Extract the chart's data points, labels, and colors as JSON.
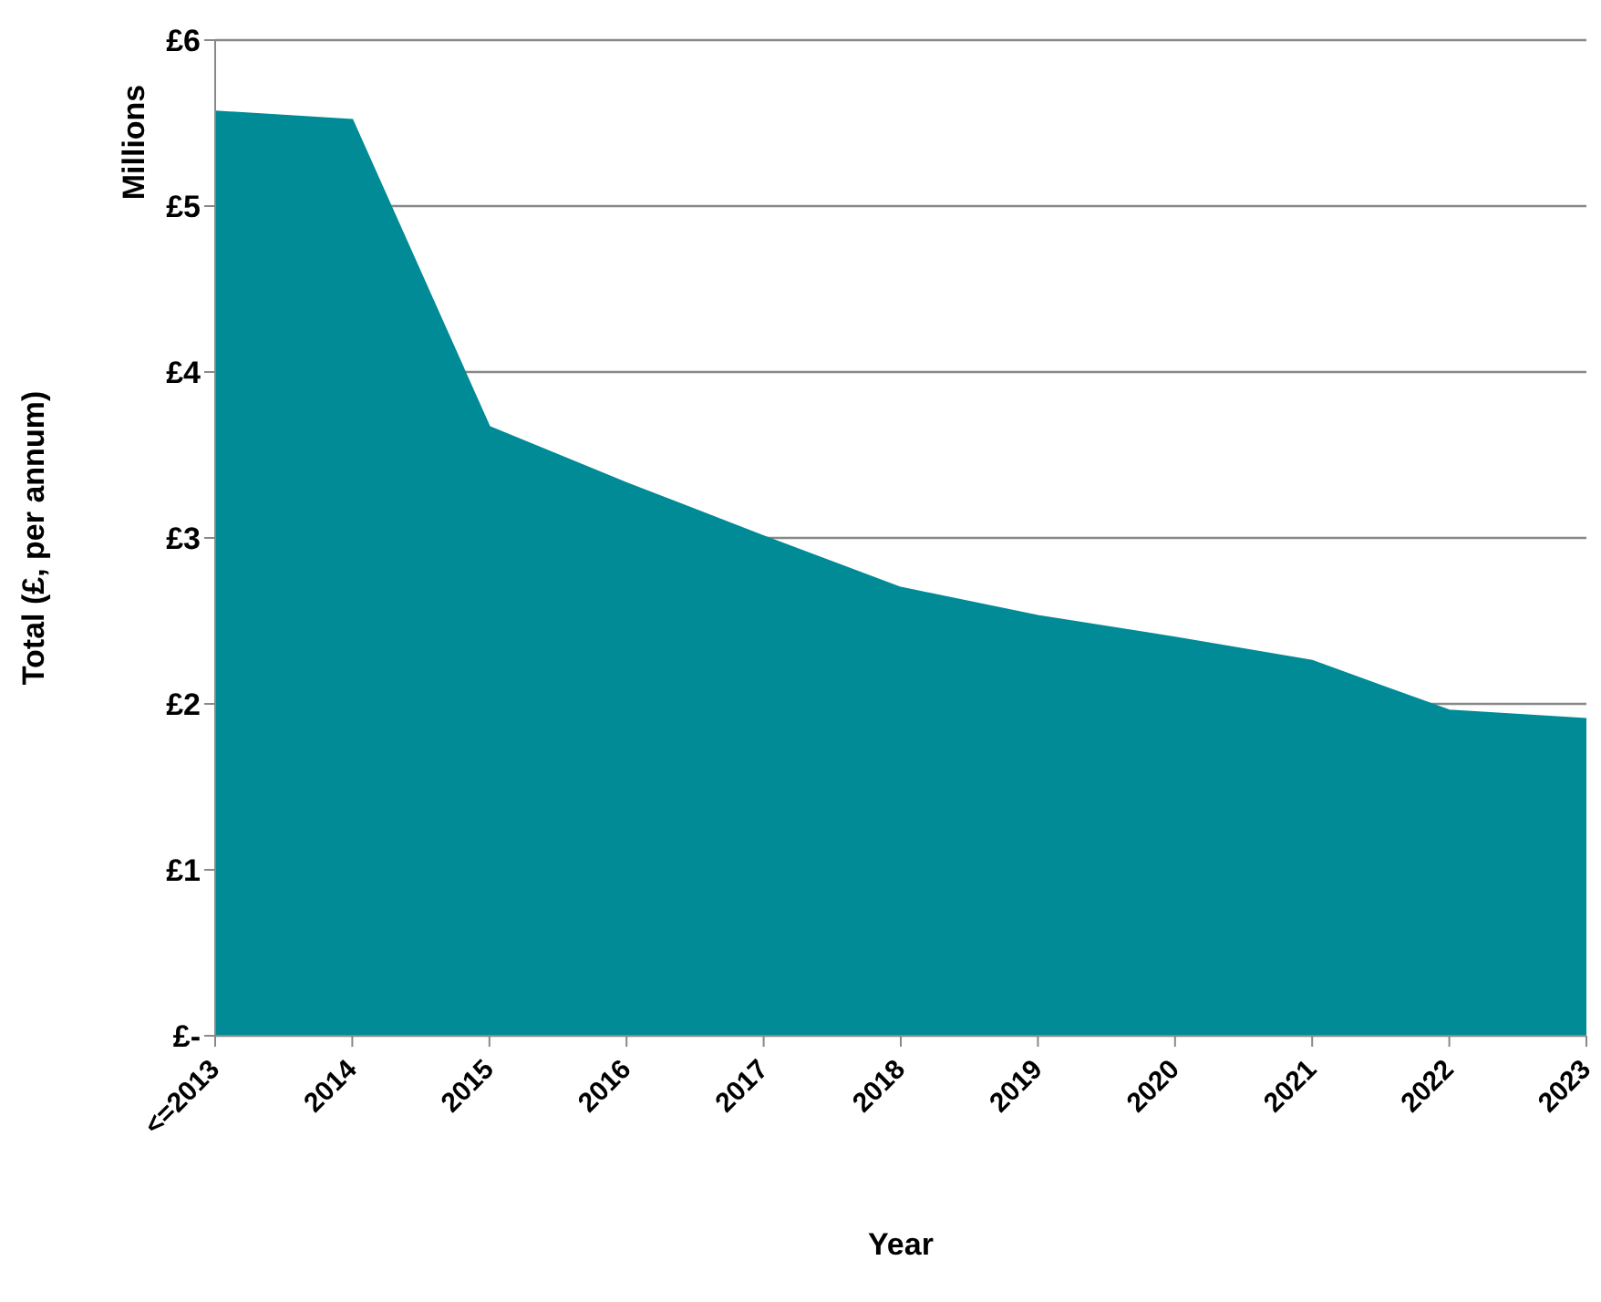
{
  "chart_data": {
    "type": "area",
    "xlabel": "Year",
    "ylabel": "Total (£, per annum)",
    "annotations": [
      "Millions"
    ],
    "categories": [
      "<=2013",
      "2014",
      "2015",
      "2016",
      "2017",
      "2018",
      "2019",
      "2020",
      "2021",
      "2022",
      "2023"
    ],
    "values": [
      5.57,
      5.52,
      3.67,
      3.33,
      3.01,
      2.7,
      2.53,
      2.4,
      2.26,
      1.96,
      1.91
    ],
    "color": "#008b96",
    "ylim": [
      0,
      6
    ],
    "yticks": [
      {
        "value": 0,
        "label": "£-"
      },
      {
        "value": 1,
        "label": "£1"
      },
      {
        "value": 2,
        "label": "£2"
      },
      {
        "value": 3,
        "label": "£3"
      },
      {
        "value": 4,
        "label": "£4"
      },
      {
        "value": 5,
        "label": "£5"
      },
      {
        "value": 6,
        "label": "£6"
      }
    ],
    "grid": "y",
    "legend": false
  }
}
